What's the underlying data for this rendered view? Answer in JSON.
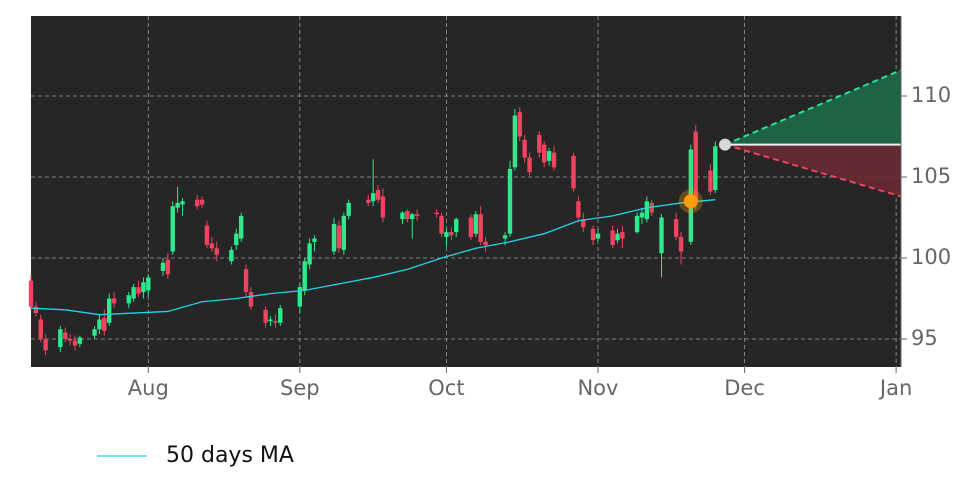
{
  "chart_data": {
    "type": "candlestick",
    "background": "#262626",
    "grid": true,
    "xlim": [
      0,
      178
    ],
    "ylim": [
      93.27,
      114.94
    ],
    "yticks": [
      95,
      100,
      105,
      110
    ],
    "xticks": [
      {
        "value": 24,
        "label": "Aug"
      },
      {
        "value": 55,
        "label": "Sep"
      },
      {
        "value": 85,
        "label": "Oct"
      },
      {
        "value": 116,
        "label": "Nov"
      },
      {
        "value": 146,
        "label": "Dec"
      },
      {
        "value": 177,
        "label": "Jan"
      }
    ],
    "up_color": "#2ee88c",
    "down_color": "#f0435f",
    "candles": {
      "x": [
        0,
        1,
        2,
        3,
        6,
        7,
        8,
        9,
        10,
        13,
        14,
        15,
        16,
        17,
        20,
        21,
        22,
        23,
        24,
        27,
        28,
        29,
        30,
        31,
        34,
        35,
        36,
        37,
        38,
        41,
        42,
        43,
        44,
        45,
        48,
        49,
        50,
        51,
        55,
        56,
        57,
        58,
        62,
        63,
        64,
        65,
        69,
        70,
        71,
        72,
        76,
        77,
        78,
        79,
        83,
        84,
        85,
        86,
        87,
        90,
        91,
        92,
        93,
        97,
        98,
        99,
        100,
        101,
        102,
        104,
        105,
        106,
        107,
        111,
        112,
        113,
        115,
        116,
        119,
        120,
        121,
        124,
        125,
        126,
        127,
        129,
        132,
        133,
        135,
        136,
        139,
        140
      ],
      "open": [
        98.6,
        97.0,
        96.2,
        95.0,
        94.5,
        95.4,
        95.0,
        94.9,
        94.7,
        95.2,
        95.6,
        96.3,
        96.0,
        97.5,
        97.2,
        97.5,
        98.2,
        97.9,
        98.0,
        99.2,
        99.9,
        100.4,
        103.1,
        103.3,
        103.6,
        103.6,
        102.0,
        100.9,
        100.6,
        99.8,
        100.8,
        101.2,
        99.3,
        97.9,
        96.8,
        96.1,
        96.1,
        96.0,
        97.0,
        98.0,
        99.6,
        101.0,
        100.4,
        102.0,
        100.5,
        102.6,
        103.6,
        103.5,
        104.2,
        103.8,
        102.4,
        102.9,
        102.4,
        102.7,
        102.8,
        102.6,
        101.3,
        101.6,
        101.6,
        102.5,
        101.5,
        102.7,
        101.0,
        101.2,
        101.5,
        105.6,
        109.0,
        107.3,
        106.2,
        107.6,
        107.0,
        106.0,
        106.5,
        106.3,
        103.5,
        102.4,
        101.8,
        101.2,
        101.7,
        101.1,
        101.6,
        101.6,
        102.5,
        102.4,
        103.4,
        100.3,
        102.4,
        101.3,
        101.0,
        107.8,
        105.4,
        104.2
      ],
      "high": [
        99.0,
        97.3,
        96.5,
        95.3,
        95.8,
        95.7,
        95.3,
        95.2,
        95.2,
        95.8,
        96.5,
        96.8,
        97.8,
        97.9,
        97.9,
        98.4,
        98.6,
        98.8,
        99.0,
        100.0,
        100.3,
        103.5,
        104.4,
        103.7,
        103.9,
        103.8,
        102.3,
        101.3,
        101.0,
        100.7,
        101.8,
        102.8,
        99.6,
        98.2,
        97.0,
        96.4,
        96.5,
        97.1,
        98.4,
        100.0,
        101.2,
        101.4,
        102.5,
        102.3,
        102.8,
        103.6,
        103.9,
        106.1,
        104.5,
        104.3,
        102.9,
        103.0,
        102.8,
        103.0,
        103.0,
        102.8,
        101.8,
        101.9,
        102.5,
        102.7,
        102.9,
        103.2,
        101.3,
        101.6,
        106.0,
        109.2,
        109.3,
        107.6,
        106.5,
        107.8,
        107.2,
        106.8,
        106.9,
        106.5,
        103.8,
        102.8,
        102.0,
        101.8,
        102.0,
        101.8,
        102.0,
        102.8,
        103.1,
        103.8,
        103.6,
        102.7,
        102.8,
        101.6,
        107.0,
        108.2,
        105.8,
        107.2
      ],
      "low": [
        96.8,
        96.4,
        94.8,
        94.0,
        94.2,
        94.8,
        94.6,
        94.3,
        94.5,
        95.0,
        95.3,
        95.2,
        95.8,
        96.9,
        96.9,
        97.3,
        97.6,
        97.5,
        97.6,
        98.9,
        98.7,
        100.2,
        102.8,
        102.6,
        103.0,
        103.1,
        100.6,
        100.4,
        99.8,
        99.6,
        100.5,
        101.0,
        97.6,
        96.8,
        95.7,
        95.8,
        95.7,
        95.8,
        96.6,
        97.7,
        99.3,
        100.4,
        100.2,
        100.3,
        100.2,
        102.4,
        103.2,
        103.2,
        103.4,
        102.2,
        102.1,
        102.2,
        101.2,
        102.3,
        102.5,
        101.3,
        100.7,
        101.1,
        101.3,
        101.1,
        101.3,
        100.8,
        100.4,
        100.8,
        101.3,
        105.4,
        107.2,
        105.9,
        105.1,
        106.2,
        105.6,
        105.7,
        105.4,
        104.1,
        102.2,
        101.6,
        100.8,
        101.0,
        100.6,
        100.9,
        100.6,
        101.5,
        102.1,
        102.2,
        102.6,
        98.8,
        101.1,
        99.6,
        100.8,
        103.0,
        103.9,
        104.0
      ],
      "close": [
        97.0,
        96.6,
        95.0,
        94.3,
        95.6,
        95.0,
        94.9,
        94.6,
        95.1,
        95.6,
        96.2,
        95.5,
        97.5,
        97.2,
        97.7,
        98.2,
        97.8,
        98.5,
        98.8,
        99.7,
        99.0,
        103.2,
        103.4,
        103.5,
        103.2,
        103.3,
        100.8,
        100.6,
        100.2,
        100.5,
        101.5,
        102.6,
        97.9,
        97.0,
        96.0,
        96.2,
        96.0,
        96.9,
        98.2,
        99.8,
        100.9,
        101.2,
        102.1,
        100.6,
        102.6,
        103.4,
        103.4,
        104.0,
        103.6,
        102.5,
        102.8,
        102.4,
        102.7,
        102.6,
        102.7,
        101.5,
        101.6,
        101.4,
        102.4,
        101.3,
        102.7,
        101.0,
        100.8,
        101.4,
        105.5,
        108.8,
        107.5,
        106.2,
        105.3,
        106.5,
        105.9,
        106.6,
        105.6,
        104.3,
        102.5,
        101.9,
        101.1,
        101.5,
        100.8,
        101.5,
        101.2,
        102.6,
        102.8,
        103.5,
        102.8,
        102.5,
        101.3,
        100.4,
        106.7,
        103.4,
        104.1,
        106.9
      ]
    },
    "series": [
      {
        "name": "50 days MA",
        "color": "#1fd4e8",
        "x": [
          0,
          7,
          14,
          21,
          28,
          35,
          42,
          49,
          56,
          63,
          70,
          77,
          84,
          91,
          98,
          105,
          112,
          119,
          126,
          133,
          140
        ],
        "values": [
          96.9,
          96.8,
          96.5,
          96.6,
          96.7,
          97.3,
          97.5,
          97.8,
          98.0,
          98.4,
          98.8,
          99.3,
          100.0,
          100.6,
          101.0,
          101.5,
          102.3,
          102.6,
          103.1,
          103.4,
          103.6
        ]
      }
    ],
    "signal": {
      "x": 135,
      "value": 103.5,
      "color": "#ff9f0f"
    },
    "last": {
      "x": 142,
      "value": 107,
      "color": "#d8d8d8"
    },
    "forecast": {
      "x": [
        142,
        178
      ],
      "mid": [
        107,
        107
      ],
      "upper": [
        107,
        111.6
      ],
      "lower": [
        107,
        103.8
      ],
      "mid_color": "#eeeeee",
      "upper_color": "#25e08f",
      "lower_color": "#f0435f",
      "upper_fill": "#1f6a49",
      "lower_fill": "#6a2a34"
    }
  }
}
